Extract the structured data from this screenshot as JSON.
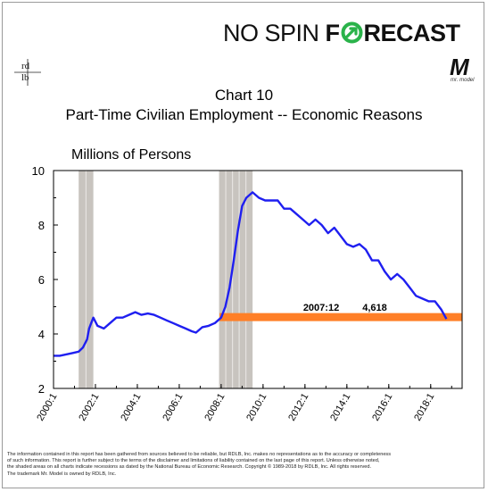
{
  "header": {
    "brand_lead": "NO SPIN ",
    "brand_f": "F",
    "brand_rest": "RECAST",
    "left_logo_top": "rd",
    "left_logo_bottom": "lb",
    "right_logo_mark": "M",
    "right_logo_sub": "mr. model"
  },
  "colors": {
    "series": "#1f1ff0",
    "reference_line": "#ff7f27",
    "recession_shading": "#c8c4bf",
    "arrow_green": "#2ab34a"
  },
  "chart_data": {
    "type": "line",
    "title": "Chart 10",
    "subtitle": "Part-Time Civilian Employment -- Economic Reasons",
    "ylabel": "Millions of Persons",
    "xlabel": "",
    "ylim": [
      2,
      10
    ],
    "yticks": [
      2,
      4,
      6,
      8,
      10
    ],
    "xlim": [
      2000.0,
      2019.5
    ],
    "xticks": [
      "2000:1",
      "2002:1",
      "2004:1",
      "2006:1",
      "2008:1",
      "2010:1",
      "2012:1",
      "2014:1",
      "2016:1",
      "2018:1"
    ],
    "grid": false,
    "recessions": [
      {
        "start": 2001.2,
        "end": 2001.9
      },
      {
        "start": 2007.9,
        "end": 2009.5
      }
    ],
    "reference": {
      "x_from": 2007.92,
      "y": 4.618,
      "label_date": "2007:12",
      "label_value": "4,618"
    },
    "series": [
      {
        "x": [
          2000.0,
          2000.3,
          2000.6,
          2000.9,
          2001.2,
          2001.4,
          2001.6,
          2001.7,
          2001.9,
          2002.1,
          2002.4,
          2002.7,
          2003.0,
          2003.3,
          2003.6,
          2003.9,
          2004.2,
          2004.5,
          2004.8,
          2005.1,
          2005.4,
          2005.7,
          2006.0,
          2006.3,
          2006.6,
          2006.8,
          2007.1,
          2007.4,
          2007.7,
          2008.0,
          2008.2,
          2008.4,
          2008.6,
          2008.8,
          2009.0,
          2009.2,
          2009.5,
          2009.8,
          2010.1,
          2010.4,
          2010.7,
          2011.0,
          2011.3,
          2011.6,
          2011.9,
          2012.2,
          2012.5,
          2012.8,
          2013.1,
          2013.4,
          2013.7,
          2014.0,
          2014.3,
          2014.6,
          2014.9,
          2015.2,
          2015.5,
          2015.8,
          2016.1,
          2016.4,
          2016.7,
          2017.0,
          2017.3,
          2017.6,
          2017.9,
          2018.2,
          2018.5,
          2018.75
        ],
        "y": [
          3.2,
          3.2,
          3.25,
          3.3,
          3.35,
          3.5,
          3.8,
          4.2,
          4.6,
          4.3,
          4.2,
          4.4,
          4.6,
          4.6,
          4.7,
          4.8,
          4.7,
          4.75,
          4.7,
          4.6,
          4.5,
          4.4,
          4.3,
          4.2,
          4.1,
          4.05,
          4.25,
          4.3,
          4.4,
          4.6,
          5.0,
          5.7,
          6.7,
          7.8,
          8.7,
          9.0,
          9.2,
          9.0,
          8.9,
          8.9,
          8.9,
          8.6,
          8.6,
          8.4,
          8.2,
          8.0,
          8.2,
          8.0,
          7.7,
          7.9,
          7.6,
          7.3,
          7.2,
          7.3,
          7.1,
          6.7,
          6.7,
          6.3,
          6.0,
          6.2,
          6.0,
          5.7,
          5.4,
          5.3,
          5.2,
          5.2,
          4.9,
          4.55
        ]
      }
    ]
  },
  "disclaimer": {
    "line1": "The information contained in this report has been gathered from sources believed to be reliable, but RDLB, Inc. makes no representations as to the accuracy or completeness",
    "line2": "of such information. This report is further subject to the terms of the disclaimer and limitations of liability contained on the last page of this report. Unless otherwise noted,",
    "line3": "the shaded areas on all charts indicate recessions as dated by the National Bureau of Economic Research. Copyright © 1989-2018 by RDLB, Inc. All rights reserved.",
    "line4": "The trademark Mr. Model is owned by RDLB, Inc."
  }
}
